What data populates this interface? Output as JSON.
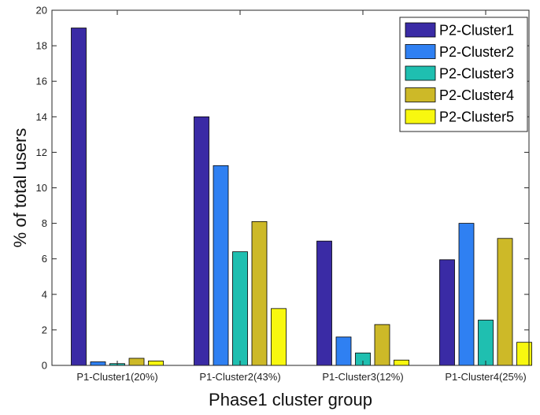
{
  "chart_data": {
    "type": "bar",
    "xlabel": "Phase1 cluster group",
    "ylabel": "% of total users",
    "ylim": [
      0,
      20
    ],
    "yticks": [
      0,
      2,
      4,
      6,
      8,
      10,
      12,
      14,
      16,
      18,
      20
    ],
    "grid": false,
    "legend_position": "top-right",
    "categories": [
      "P1-Cluster1(20%)",
      "P1-Cluster2(43%)",
      "P1-Cluster3(12%)",
      "P1-Cluster4(25%)"
    ],
    "series": [
      {
        "name": "P2-Cluster1",
        "color": "#3a2ba5",
        "values": [
          19.0,
          14.0,
          7.0,
          5.95
        ]
      },
      {
        "name": "P2-Cluster2",
        "color": "#2f80f2",
        "values": [
          0.2,
          11.25,
          1.6,
          8.0
        ]
      },
      {
        "name": "P2-Cluster3",
        "color": "#1fbfb0",
        "values": [
          0.1,
          6.4,
          0.7,
          2.55
        ]
      },
      {
        "name": "P2-Cluster4",
        "color": "#cdb928",
        "values": [
          0.4,
          8.1,
          2.3,
          7.15
        ]
      },
      {
        "name": "P2-Cluster5",
        "color": "#f8f80f",
        "values": [
          0.25,
          3.2,
          0.3,
          1.3
        ]
      }
    ]
  }
}
